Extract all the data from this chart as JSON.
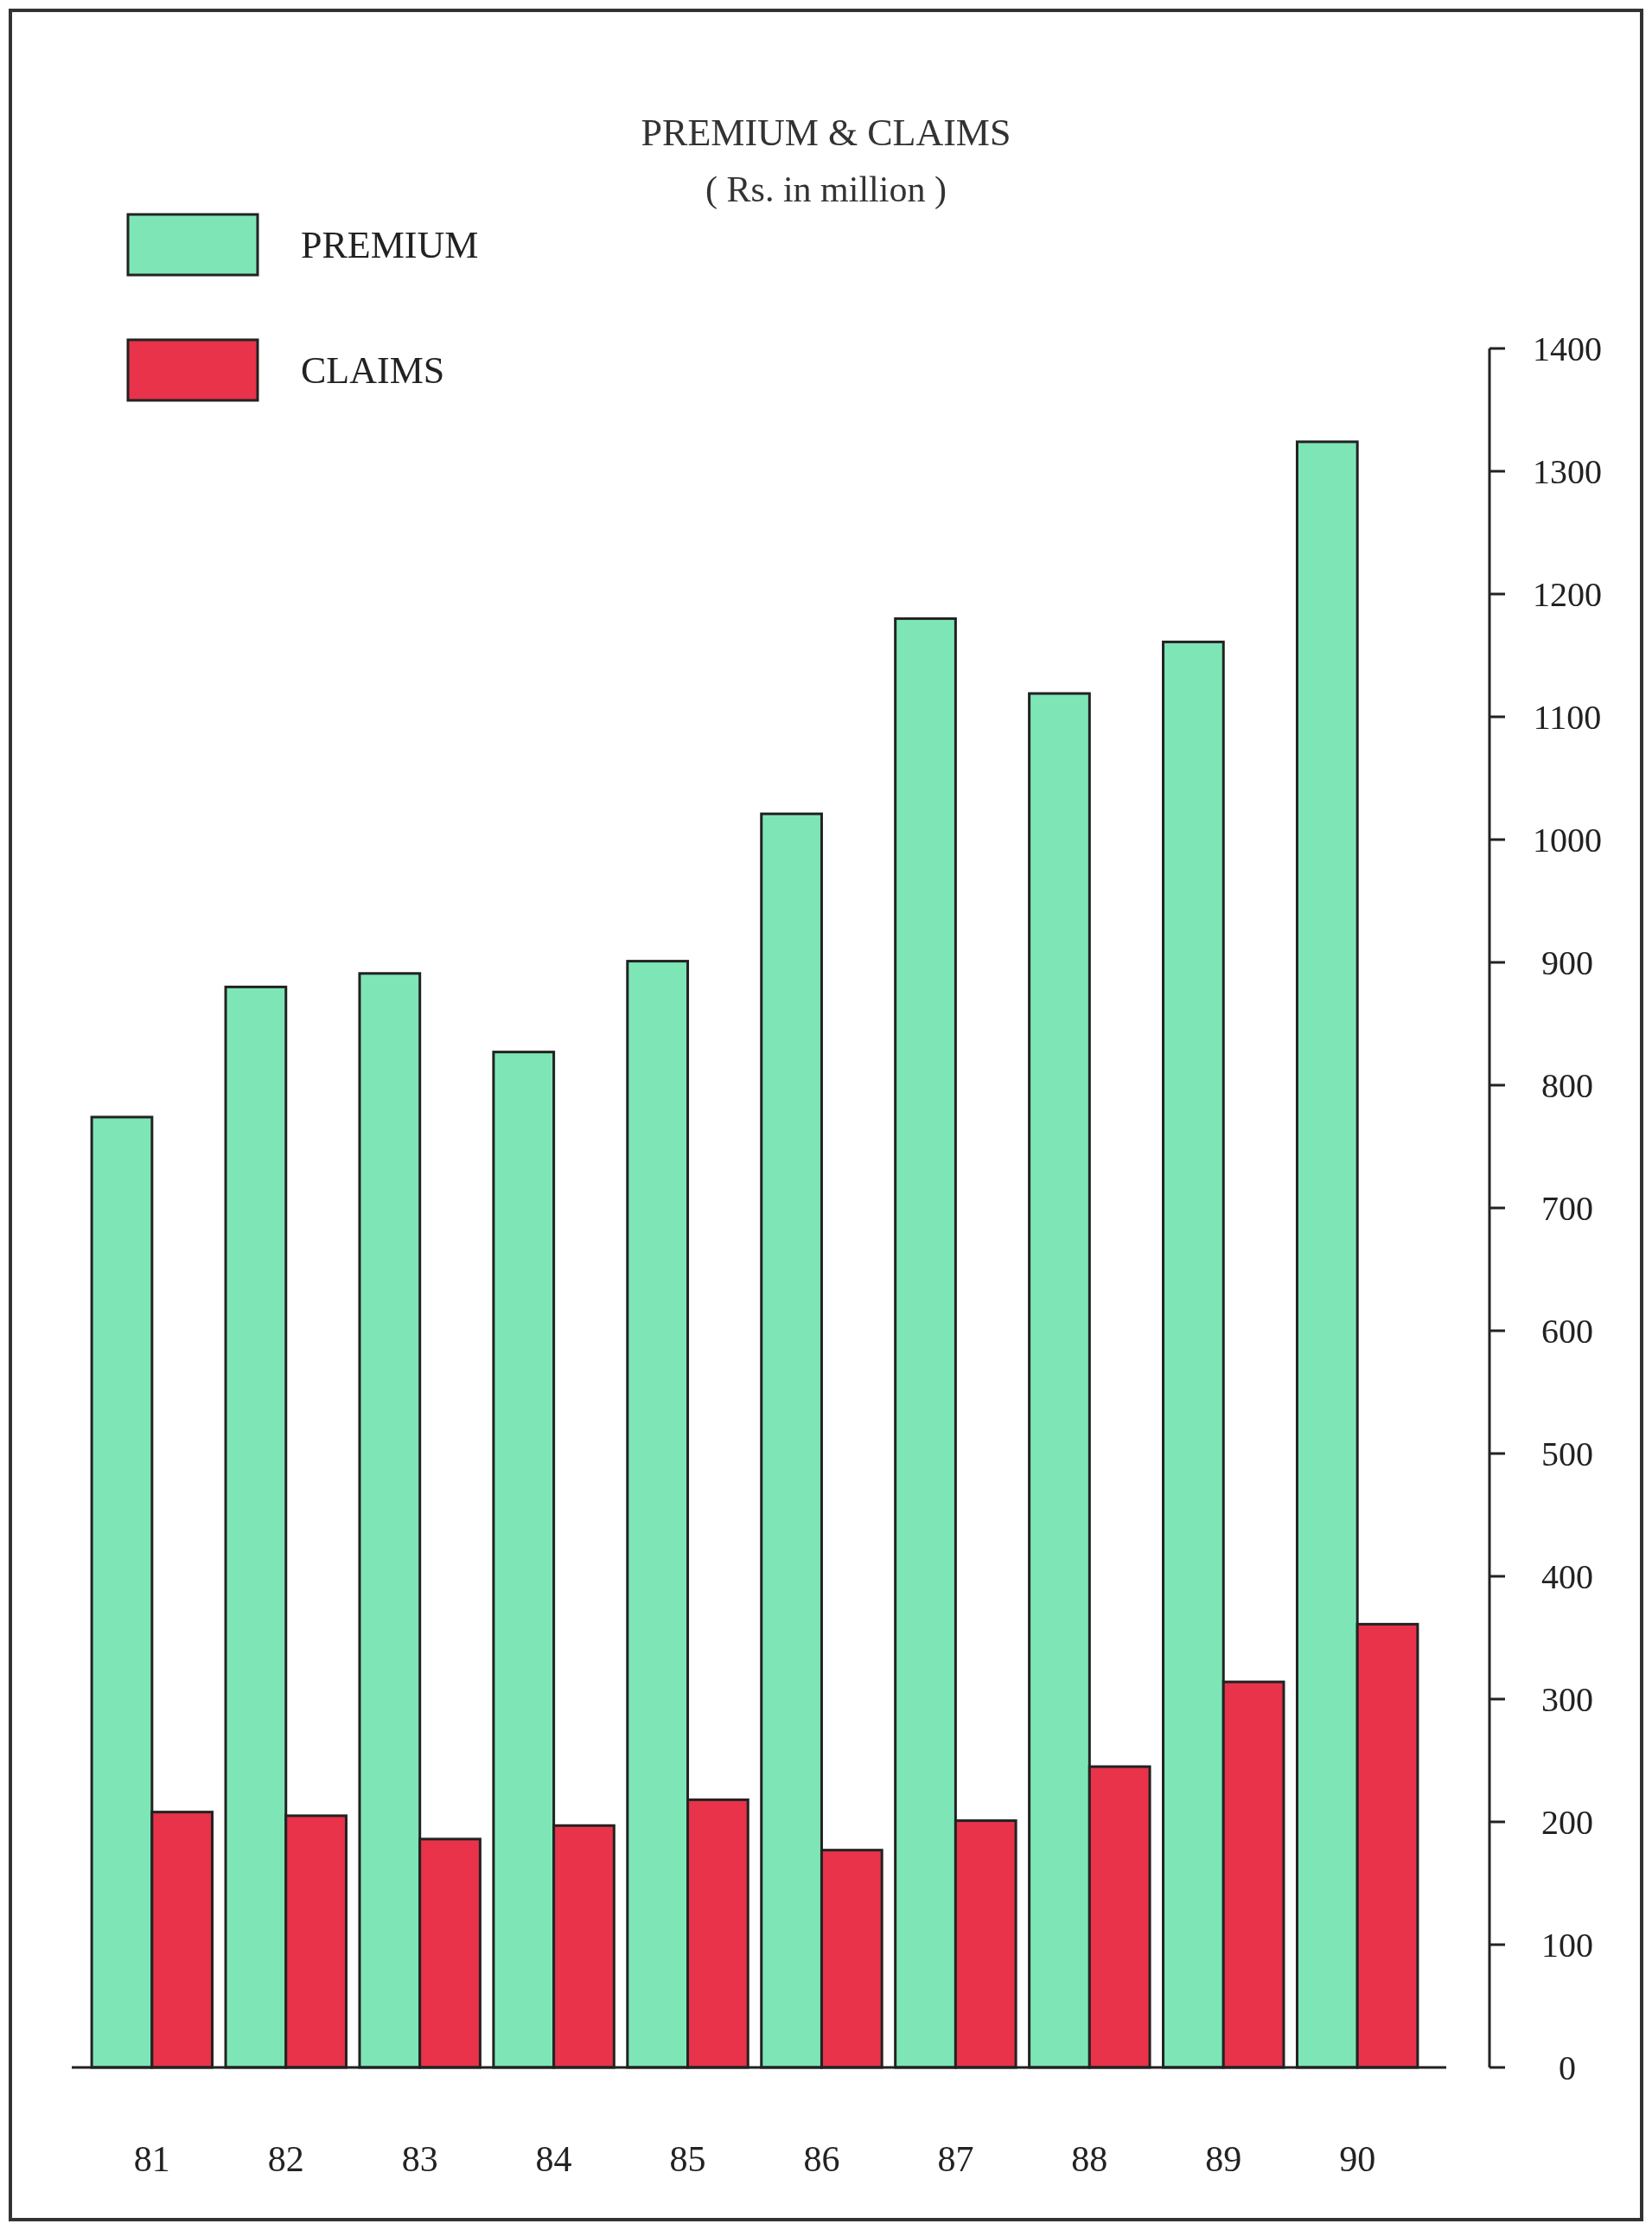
{
  "chart_data": {
    "type": "bar",
    "title": "PREMIUM & CLAIMS",
    "subtitle": "( Rs. in million )",
    "categories": [
      "81",
      "82",
      "83",
      "84",
      "85",
      "86",
      "87",
      "88",
      "89",
      "90"
    ],
    "series": [
      {
        "name": "PREMIUM",
        "color": "#7ee6b6",
        "values": [
          774,
          880,
          891,
          827,
          901,
          1021,
          1180,
          1119,
          1161,
          1324
        ]
      },
      {
        "name": "CLAIMS",
        "color": "#e8334a",
        "values": [
          208,
          205,
          186,
          197,
          218,
          177,
          201,
          245,
          314,
          361
        ]
      }
    ],
    "ylim": [
      0,
      1400
    ],
    "yticks": [
      0,
      100,
      200,
      300,
      400,
      500,
      600,
      700,
      800,
      900,
      1000,
      1100,
      1200,
      1300,
      1400
    ],
    "legend": "top left",
    "grid": false
  }
}
